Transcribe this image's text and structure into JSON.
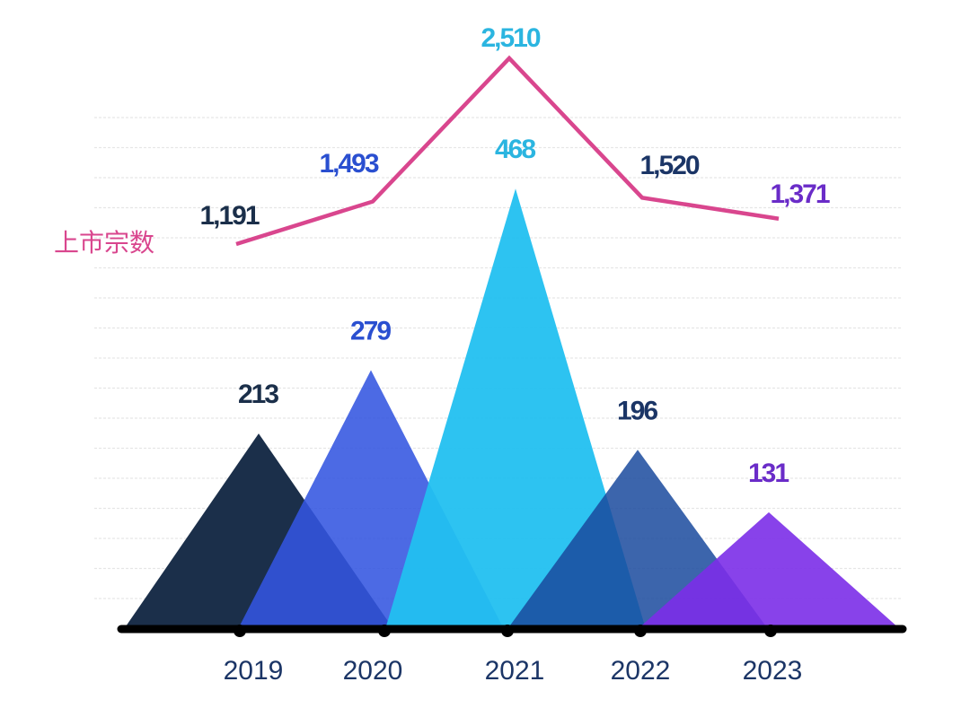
{
  "chart_data": {
    "type": "combo",
    "categories": [
      "2019",
      "2020",
      "2021",
      "2022",
      "2023"
    ],
    "series": [
      {
        "type": "triangle-bar",
        "values": [
          213,
          279,
          468,
          196,
          131
        ],
        "colors": [
          "#1b2f4a",
          "#3355e0",
          "#22c0f0",
          "#1a4a9e",
          "#7b2ee8"
        ]
      },
      {
        "type": "line",
        "name": "上市宗数",
        "values": [
          1191,
          1493,
          2510,
          1520,
          1371
        ],
        "color": "#d9468e"
      }
    ],
    "data_labels_bar": [
      "213",
      "279",
      "468",
      "196",
      "131"
    ],
    "data_labels_line": [
      "1,191",
      "1,493",
      "2,510",
      "1,520",
      "1,371"
    ],
    "label_colors": [
      "#1b2f4a",
      "#2a4fd0",
      "#2bb5e0",
      "#1b3566",
      "#6a2cc8"
    ],
    "grid": true,
    "axis_color": "#000000"
  }
}
